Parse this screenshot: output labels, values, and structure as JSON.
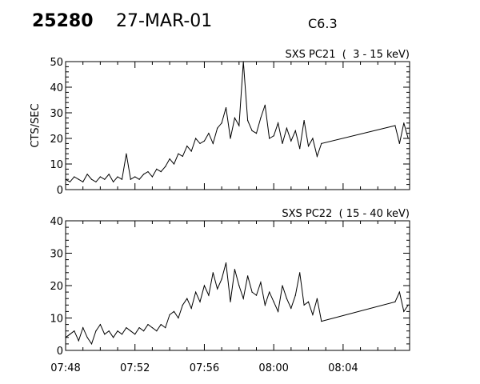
{
  "header": {
    "event_id": "25280",
    "date": "27-MAR-01",
    "flare_class": "C6.3"
  },
  "chart_data": [
    {
      "type": "line",
      "title": "SXS PC21  (  3 - 15 keV)",
      "ylabel": "CTS/SEC",
      "xlabel": "",
      "xlim": [
        "07:48:00",
        "08:07:50"
      ],
      "ylim": [
        0,
        50
      ],
      "yticks": [
        0,
        10,
        20,
        30,
        40,
        50
      ],
      "xticks": [
        "07:48",
        "07:52",
        "07:56",
        "08:00",
        "08:04"
      ],
      "show_xtick_labels": false,
      "grid": false,
      "color": "#000000",
      "x": [
        "07:48:00",
        "07:48:15",
        "07:48:30",
        "07:48:45",
        "07:49:00",
        "07:49:15",
        "07:49:30",
        "07:49:45",
        "07:50:00",
        "07:50:15",
        "07:50:30",
        "07:50:45",
        "07:51:00",
        "07:51:15",
        "07:51:30",
        "07:51:45",
        "07:52:00",
        "07:52:15",
        "07:52:30",
        "07:52:45",
        "07:53:00",
        "07:53:15",
        "07:53:30",
        "07:53:45",
        "07:54:00",
        "07:54:15",
        "07:54:30",
        "07:54:45",
        "07:55:00",
        "07:55:15",
        "07:55:30",
        "07:55:45",
        "07:56:00",
        "07:56:15",
        "07:56:30",
        "07:56:45",
        "07:57:00",
        "07:57:15",
        "07:57:30",
        "07:57:45",
        "07:58:00",
        "07:58:15",
        "07:58:30",
        "07:58:45",
        "07:59:00",
        "07:59:15",
        "07:59:30",
        "07:59:45",
        "08:00:00",
        "08:00:15",
        "08:00:30",
        "08:00:45",
        "08:01:00",
        "08:01:15",
        "08:01:30",
        "08:01:45",
        "08:02:00",
        "08:02:15",
        "08:02:30",
        "08:02:45",
        "08:07:00",
        "08:07:15",
        "08:07:30",
        "08:07:45"
      ],
      "values": [
        4,
        3,
        5,
        4,
        3,
        6,
        4,
        3,
        5,
        4,
        6,
        3,
        5,
        4,
        14,
        4,
        5,
        4,
        6,
        7,
        5,
        8,
        7,
        9,
        12,
        10,
        14,
        13,
        17,
        15,
        20,
        18,
        19,
        22,
        18,
        24,
        26,
        32,
        20,
        28,
        25,
        51,
        27,
        23,
        22,
        28,
        33,
        20,
        21,
        26,
        18,
        24,
        19,
        23,
        16,
        27,
        17,
        20,
        13,
        18,
        25,
        18,
        26,
        20
      ]
    },
    {
      "type": "line",
      "title": "SXS PC22  ( 15 - 40 keV)",
      "ylabel": "",
      "xlabel": "",
      "xlim": [
        "07:48:00",
        "08:07:50"
      ],
      "ylim": [
        0,
        40
      ],
      "yticks": [
        0,
        10,
        20,
        30,
        40
      ],
      "xticks": [
        "07:48",
        "07:52",
        "07:56",
        "08:00",
        "08:04"
      ],
      "show_xtick_labels": true,
      "grid": false,
      "color": "#000000",
      "x": [
        "07:48:00",
        "07:48:15",
        "07:48:30",
        "07:48:45",
        "07:49:00",
        "07:49:15",
        "07:49:30",
        "07:49:45",
        "07:50:00",
        "07:50:15",
        "07:50:30",
        "07:50:45",
        "07:51:00",
        "07:51:15",
        "07:51:30",
        "07:51:45",
        "07:52:00",
        "07:52:15",
        "07:52:30",
        "07:52:45",
        "07:53:00",
        "07:53:15",
        "07:53:30",
        "07:53:45",
        "07:54:00",
        "07:54:15",
        "07:54:30",
        "07:54:45",
        "07:55:00",
        "07:55:15",
        "07:55:30",
        "07:55:45",
        "07:56:00",
        "07:56:15",
        "07:56:30",
        "07:56:45",
        "07:57:00",
        "07:57:15",
        "07:57:30",
        "07:57:45",
        "07:58:00",
        "07:58:15",
        "07:58:30",
        "07:58:45",
        "07:59:00",
        "07:59:15",
        "07:59:30",
        "07:59:45",
        "08:00:00",
        "08:00:15",
        "08:00:30",
        "08:00:45",
        "08:01:00",
        "08:01:15",
        "08:01:30",
        "08:01:45",
        "08:02:00",
        "08:02:15",
        "08:02:30",
        "08:02:45",
        "08:07:00",
        "08:07:15",
        "08:07:30",
        "08:07:45"
      ],
      "values": [
        4,
        5,
        6,
        3,
        7,
        4,
        2,
        6,
        8,
        5,
        6,
        4,
        6,
        5,
        7,
        6,
        5,
        7,
        6,
        8,
        7,
        6,
        8,
        7,
        11,
        12,
        10,
        14,
        16,
        13,
        18,
        15,
        20,
        17,
        24,
        19,
        22,
        27,
        15,
        25,
        20,
        16,
        23,
        18,
        17,
        21,
        14,
        18,
        15,
        12,
        20,
        16,
        13,
        17,
        24,
        14,
        15,
        11,
        16,
        9,
        15,
        18,
        12,
        14
      ]
    }
  ]
}
